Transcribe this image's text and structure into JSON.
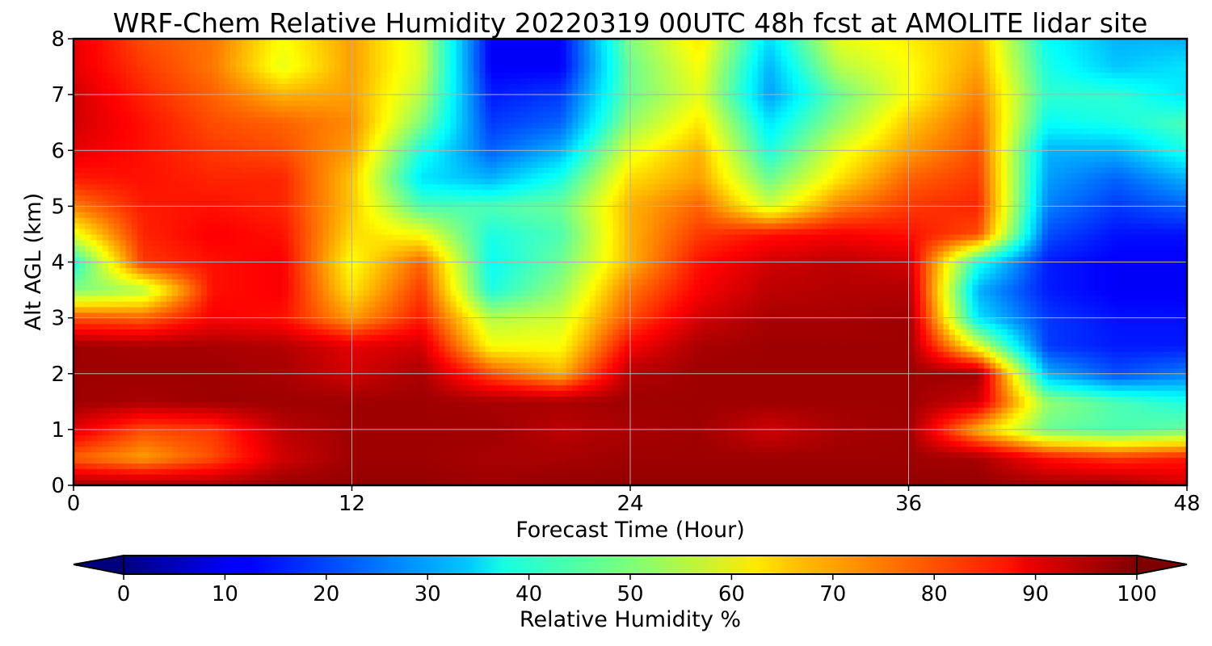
{
  "chart_data": {
    "type": "heatmap",
    "title": "WRF-Chem Relative Humidity 20220319 00UTC 48h fcst at AMOLITE lidar site",
    "xlabel": "Forecast Time (Hour)",
    "ylabel": "Alt AGL (km)",
    "xlim": [
      0,
      48
    ],
    "ylim": [
      0,
      8
    ],
    "x_ticks": [
      "0",
      "12",
      "24",
      "36",
      "48"
    ],
    "y_ticks": [
      "0",
      "1",
      "2",
      "3",
      "4",
      "5",
      "6",
      "7",
      "8"
    ],
    "grid": true,
    "colormap": "jet",
    "z_label": "Relative Humidity %",
    "z_range": [
      0,
      100
    ],
    "colorbar": {
      "label": "Relative Humidity %",
      "ticks": [
        "0",
        "10",
        "20",
        "30",
        "40",
        "50",
        "60",
        "70",
        "80",
        "90",
        "100"
      ],
      "extend": "both",
      "orientation": "horizontal"
    },
    "x": [
      0,
      3,
      6,
      9,
      12,
      15,
      18,
      21,
      24,
      27,
      30,
      33,
      36,
      39,
      42,
      45,
      48
    ],
    "y": [
      0,
      0.5,
      1,
      1.5,
      2,
      2.5,
      3,
      3.5,
      4,
      4.5,
      5,
      5.5,
      6,
      6.5,
      7,
      7.5,
      8
    ],
    "z": [
      [
        97,
        97,
        96,
        98,
        98,
        98,
        97,
        98,
        98,
        98,
        98,
        98,
        98,
        98,
        97,
        97,
        92
      ],
      [
        78,
        72,
        80,
        92,
        97,
        97,
        96,
        96,
        97,
        97,
        97,
        97,
        97,
        96,
        86,
        82,
        85
      ],
      [
        90,
        80,
        82,
        94,
        97,
        97,
        97,
        94,
        96,
        97,
        92,
        96,
        97,
        70,
        48,
        45,
        48
      ],
      [
        97,
        96,
        97,
        97,
        97,
        97,
        96,
        96,
        97,
        97,
        97,
        97,
        97,
        92,
        52,
        45,
        40
      ],
      [
        97,
        97,
        97,
        96,
        92,
        96,
        80,
        70,
        95,
        97,
        97,
        97,
        97,
        97,
        30,
        20,
        25
      ],
      [
        97,
        96,
        96,
        95,
        90,
        92,
        62,
        62,
        88,
        96,
        97,
        97,
        97,
        60,
        18,
        15,
        15
      ],
      [
        80,
        78,
        88,
        86,
        72,
        85,
        55,
        58,
        80,
        92,
        96,
        96,
        97,
        35,
        18,
        14,
        14
      ],
      [
        50,
        55,
        86,
        88,
        65,
        82,
        40,
        52,
        76,
        88,
        94,
        95,
        95,
        30,
        15,
        12,
        12
      ],
      [
        40,
        82,
        86,
        88,
        62,
        78,
        38,
        48,
        70,
        86,
        92,
        94,
        92,
        40,
        15,
        12,
        12
      ],
      [
        60,
        84,
        88,
        86,
        66,
        62,
        40,
        45,
        70,
        82,
        86,
        88,
        86,
        80,
        20,
        14,
        14
      ],
      [
        75,
        85,
        86,
        84,
        68,
        45,
        45,
        48,
        70,
        78,
        58,
        75,
        82,
        84,
        25,
        18,
        22
      ],
      [
        85,
        86,
        84,
        84,
        68,
        35,
        30,
        40,
        66,
        72,
        48,
        65,
        78,
        82,
        28,
        22,
        30
      ],
      [
        90,
        86,
        82,
        80,
        72,
        40,
        22,
        30,
        60,
        70,
        40,
        60,
        72,
        80,
        30,
        30,
        40
      ],
      [
        92,
        86,
        80,
        78,
        74,
        50,
        18,
        22,
        52,
        65,
        35,
        52,
        68,
        78,
        38,
        40,
        45
      ],
      [
        92,
        84,
        78,
        70,
        72,
        55,
        15,
        18,
        48,
        60,
        28,
        48,
        62,
        75,
        42,
        42,
        35
      ],
      [
        90,
        82,
        76,
        60,
        72,
        58,
        12,
        12,
        48,
        62,
        30,
        55,
        62,
        72,
        40,
        32,
        35
      ],
      [
        90,
        80,
        76,
        62,
        72,
        58,
        12,
        12,
        50,
        65,
        34,
        60,
        64,
        70,
        38,
        30,
        30
      ]
    ]
  }
}
